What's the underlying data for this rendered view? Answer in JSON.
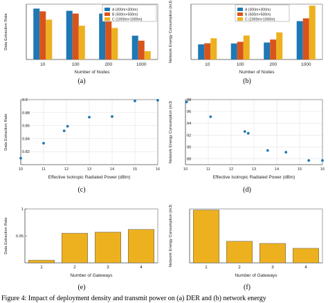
{
  "colors": {
    "blue": "#1f77b4",
    "red": "#d9541a",
    "gold": "#edb120",
    "axis": "#444444",
    "grid": "#d6d6d6"
  },
  "panels": {
    "a": {
      "label": "(a)"
    },
    "b": {
      "label": "(b)"
    },
    "c": {
      "label": "(c)"
    },
    "d": {
      "label": "(d)"
    },
    "e": {
      "label": "(e)"
    },
    "f": {
      "label": "(f)"
    }
  },
  "caption": "Figure 4: Impact of deployment density and transmit power on (a) DER and (b) network energy",
  "chart_data": [
    {
      "id": "a",
      "type": "bar",
      "title": "",
      "xlabel": "Number of Nodes",
      "ylabel": "Data Extraction Rate",
      "categories": [
        "10",
        "100",
        "200",
        "1000"
      ],
      "ylim": [
        0,
        1
      ],
      "yticks": [],
      "legend_position": "top-right",
      "series": [
        {
          "name": "A (300m×300m)",
          "color": "#1f77b4",
          "values": [
            0.92,
            0.88,
            0.83,
            0.43
          ]
        },
        {
          "name": "B (500m×500m)",
          "color": "#d9541a",
          "values": [
            0.87,
            0.83,
            0.74,
            0.34
          ]
        },
        {
          "name": "C (1000m×1000m)",
          "color": "#edb120",
          "values": [
            0.72,
            0.61,
            0.57,
            0.15
          ]
        }
      ]
    },
    {
      "id": "b",
      "type": "bar",
      "title": "",
      "xlabel": "Number of Nodes",
      "ylabel": "Network Energy Consumption (mJ)",
      "categories": [
        "10",
        "100",
        "200",
        "1000"
      ],
      "ylim": [
        0,
        300
      ],
      "yticks": [],
      "legend_position": "top-left",
      "series": [
        {
          "name": "A (300m×300m)",
          "color": "#1f77b4",
          "values": [
            82,
            87,
            92,
            208
          ]
        },
        {
          "name": "B (500m×500m)",
          "color": "#d9541a",
          "values": [
            88,
            96,
            108,
            223
          ]
        },
        {
          "name": "C (1000m×1000m)",
          "color": "#edb120",
          "values": [
            115,
            130,
            147,
            292
          ]
        }
      ]
    },
    {
      "id": "c",
      "type": "scatter",
      "title": "",
      "xlabel": "Effective Isotropic Radiated Power (dBm)",
      "ylabel": "Data Extraction Rate",
      "xlim": [
        10,
        16
      ],
      "ylim": [
        0.8,
        0.9
      ],
      "xticks": [
        "10",
        "11",
        "12",
        "13",
        "14",
        "15",
        "16"
      ],
      "yticks": [
        "0.82",
        "0.84",
        "0.86",
        "0.88",
        "0.9"
      ],
      "color": "#1f77b4",
      "points": [
        {
          "x": 10,
          "y": 0.81
        },
        {
          "x": 11,
          "y": 0.833
        },
        {
          "x": 11.9,
          "y": 0.852
        },
        {
          "x": 12.05,
          "y": 0.859
        },
        {
          "x": 13,
          "y": 0.873
        },
        {
          "x": 14,
          "y": 0.874
        },
        {
          "x": 15,
          "y": 0.898
        },
        {
          "x": 16,
          "y": 0.899
        }
      ]
    },
    {
      "id": "d",
      "type": "scatter",
      "title": "",
      "xlabel": "Effective Isotropic Radiated Power (dBm)",
      "ylabel": "Network Energy Consumption (mJ)",
      "xlim": [
        10,
        16
      ],
      "ylim": [
        87,
        98
      ],
      "xticks": [
        "10",
        "11",
        "12",
        "13",
        "14",
        "15",
        "16"
      ],
      "yticks": [
        "88",
        "90",
        "92",
        "94",
        "96",
        "98"
      ],
      "color": "#1f77b4",
      "points": [
        {
          "x": 10.05,
          "y": 97.6
        },
        {
          "x": 11.1,
          "y": 95.1
        },
        {
          "x": 12.6,
          "y": 92.6
        },
        {
          "x": 12.75,
          "y": 92.3
        },
        {
          "x": 13.6,
          "y": 89.4
        },
        {
          "x": 14.4,
          "y": 89.1
        },
        {
          "x": 15.4,
          "y": 87.7
        },
        {
          "x": 16,
          "y": 87.7
        }
      ]
    },
    {
      "id": "e",
      "type": "bar",
      "title": "",
      "xlabel": "Number of Gateways",
      "ylabel": "Data Extraction Rate",
      "categories": [
        "1",
        "2",
        "3",
        "4"
      ],
      "ylim": [
        0.9,
        1.0
      ],
      "yticks": [
        "0.95",
        "1"
      ],
      "color": "#edb120",
      "values": [
        0.905,
        0.955,
        0.957,
        0.962
      ]
    },
    {
      "id": "f",
      "type": "bar",
      "title": "",
      "xlabel": "Number of Gateways",
      "ylabel": "Network Energy Consumption (mJ)",
      "categories": [
        "1",
        "2",
        "3",
        "4"
      ],
      "ylim": [
        0,
        100
      ],
      "yticks": [],
      "color": "#edb120",
      "values": [
        98,
        40,
        36,
        27
      ]
    }
  ]
}
